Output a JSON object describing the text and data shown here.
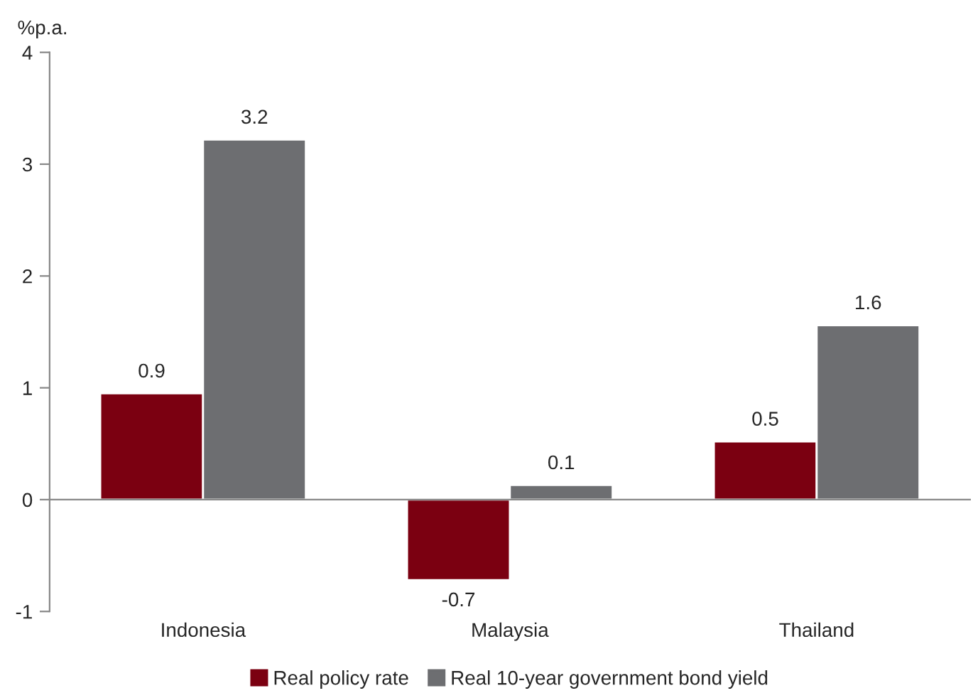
{
  "chart_data": {
    "type": "bar",
    "ylabel": "%p.a.",
    "categories": [
      "Indonesia",
      "Malaysia",
      "Thailand"
    ],
    "series": [
      {
        "name": "Real policy rate",
        "color": "#7b0011",
        "values": [
          0.95,
          -0.72,
          0.52
        ],
        "value_labels": [
          "0.9",
          "-0.7",
          "0.5"
        ]
      },
      {
        "name": "Real 10-year government bond yield",
        "color": "#6d6e71",
        "values": [
          3.22,
          0.13,
          1.56
        ],
        "value_labels": [
          "3.2",
          "0.1",
          "1.6"
        ]
      }
    ],
    "ylim": [
      -1,
      4
    ],
    "yticks": [
      -1,
      0,
      1,
      2,
      3,
      4
    ],
    "legend": "bottom"
  }
}
